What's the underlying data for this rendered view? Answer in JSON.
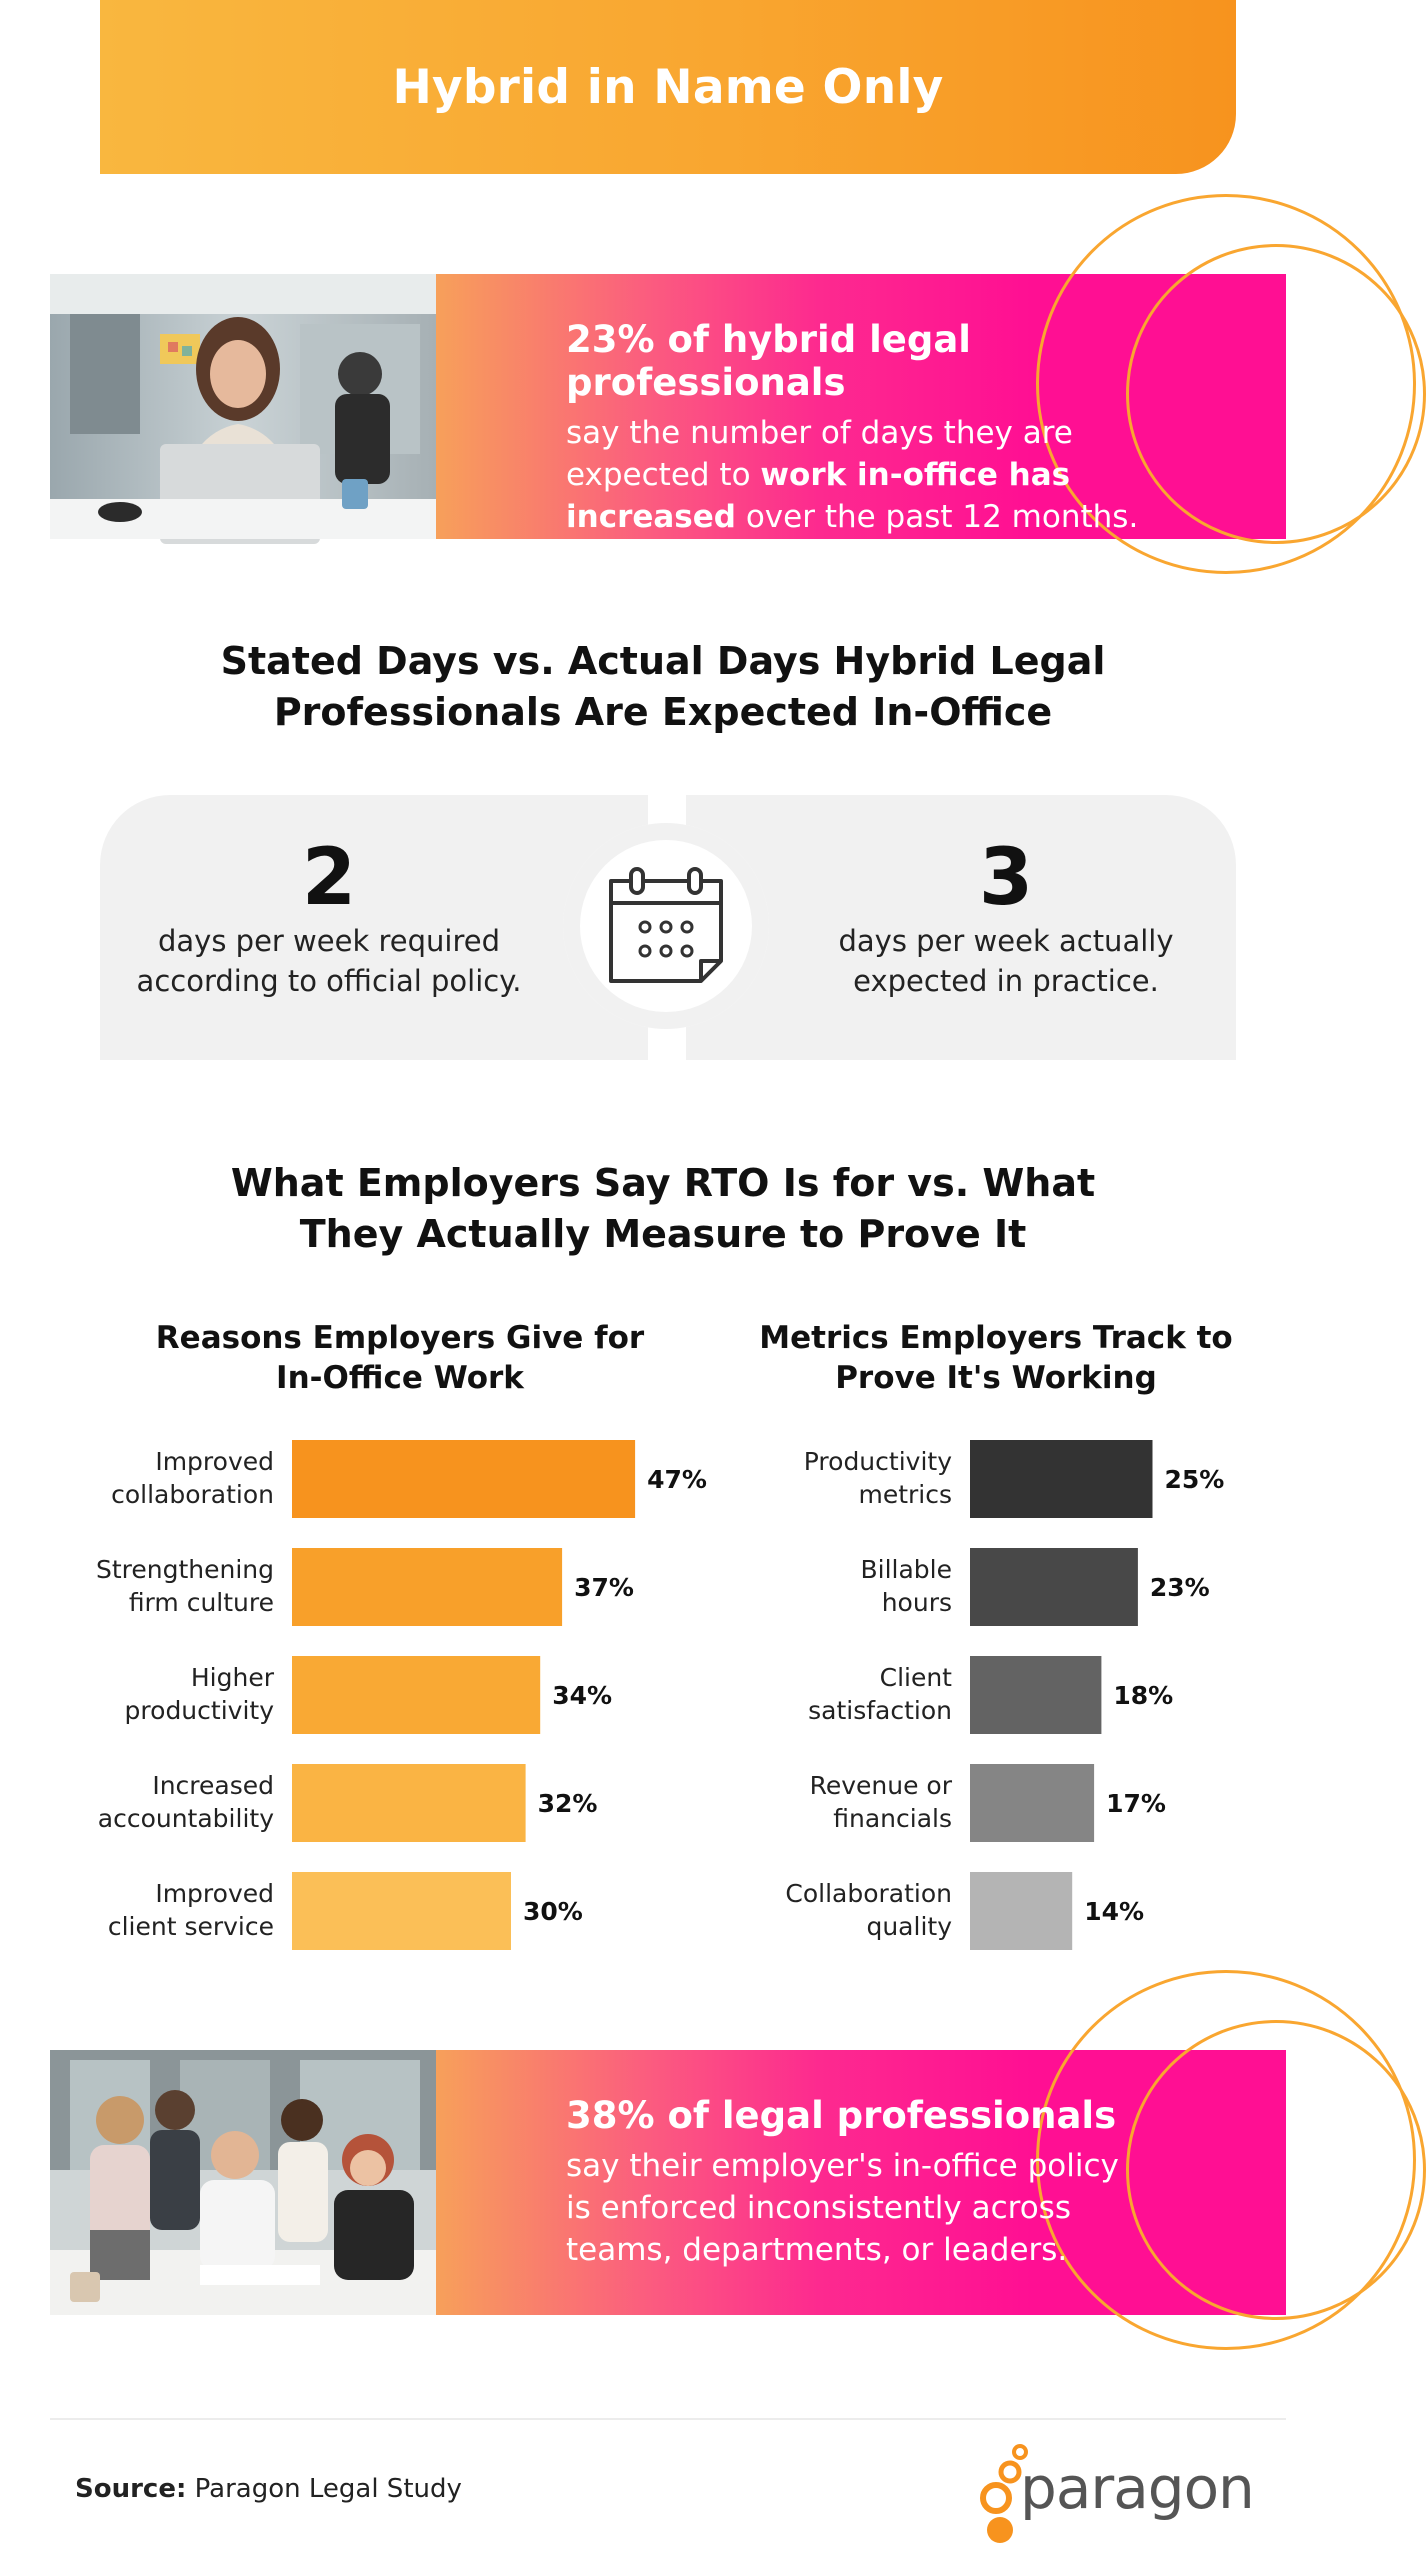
{
  "header": {
    "title": "Hybrid in Name Only"
  },
  "banner1": {
    "headline": "23% of hybrid legal professionals",
    "line_a": "say the number of days they are",
    "line_b_pre": "expected to ",
    "line_b_bold": "work in-office has",
    "line_c_bold": "increased",
    "line_c_post": " over the past 12 months."
  },
  "stated_section": {
    "title_line1": "Stated Days vs. Actual Days Hybrid Legal",
    "title_line2": "Professionals Are Expected In-Office",
    "left": {
      "number": "2",
      "desc_line1": "days per week required",
      "desc_line2": "according to official policy."
    },
    "right": {
      "number": "3",
      "desc_line1": "days per week actually",
      "desc_line2": "expected in practice."
    }
  },
  "rto_section": {
    "title_line1": "What Employers Say RTO Is for vs. What",
    "title_line2": "They Actually Measure to Prove It"
  },
  "chart_data": [
    {
      "type": "bar",
      "orientation": "horizontal",
      "title_line1": "Reasons Employers Give for",
      "title_line2": "In-Office Work",
      "categories": [
        [
          "Improved",
          "collaboration"
        ],
        [
          "Strengthening",
          "firm culture"
        ],
        [
          "Higher",
          "productivity"
        ],
        [
          "Increased",
          "accountability"
        ],
        [
          "Improved",
          "client service"
        ]
      ],
      "values": [
        47,
        37,
        34,
        32,
        30
      ],
      "value_labels": [
        "47%",
        "37%",
        "34%",
        "32%",
        "30%"
      ],
      "colors": [
        "#f7931e",
        "#f8a02a",
        "#f9a934",
        "#fab444",
        "#fbbf57"
      ],
      "unit": "%"
    },
    {
      "type": "bar",
      "orientation": "horizontal",
      "title_line1": "Metrics Employers Track to",
      "title_line2": "Prove It's Working",
      "categories": [
        [
          "Productivity",
          "metrics"
        ],
        [
          "Billable",
          "hours"
        ],
        [
          "Client",
          "satisfaction"
        ],
        [
          "Revenue or",
          "financials"
        ],
        [
          "Collaboration",
          "quality"
        ]
      ],
      "values": [
        25,
        23,
        18,
        17,
        14
      ],
      "value_labels": [
        "25%",
        "23%",
        "18%",
        "17%",
        "14%"
      ],
      "colors": [
        "#333333",
        "#484848",
        "#636363",
        "#858585",
        "#b4b4b4"
      ],
      "unit": "%"
    }
  ],
  "banner2": {
    "headline": "38% of legal professionals",
    "line_a": "say their employer's in-office policy",
    "line_b": "is enforced inconsistently across",
    "line_c": "teams, departments, or leaders."
  },
  "footer": {
    "source_label": "Source:",
    "source_text": " Paragon Legal Study",
    "logo_text": "paragon"
  },
  "colors": {
    "orange": "#f9a630",
    "magenta": "#ff0f93",
    "card_gray": "#f1f1f1"
  },
  "icons": {
    "calendar": "calendar-icon"
  }
}
